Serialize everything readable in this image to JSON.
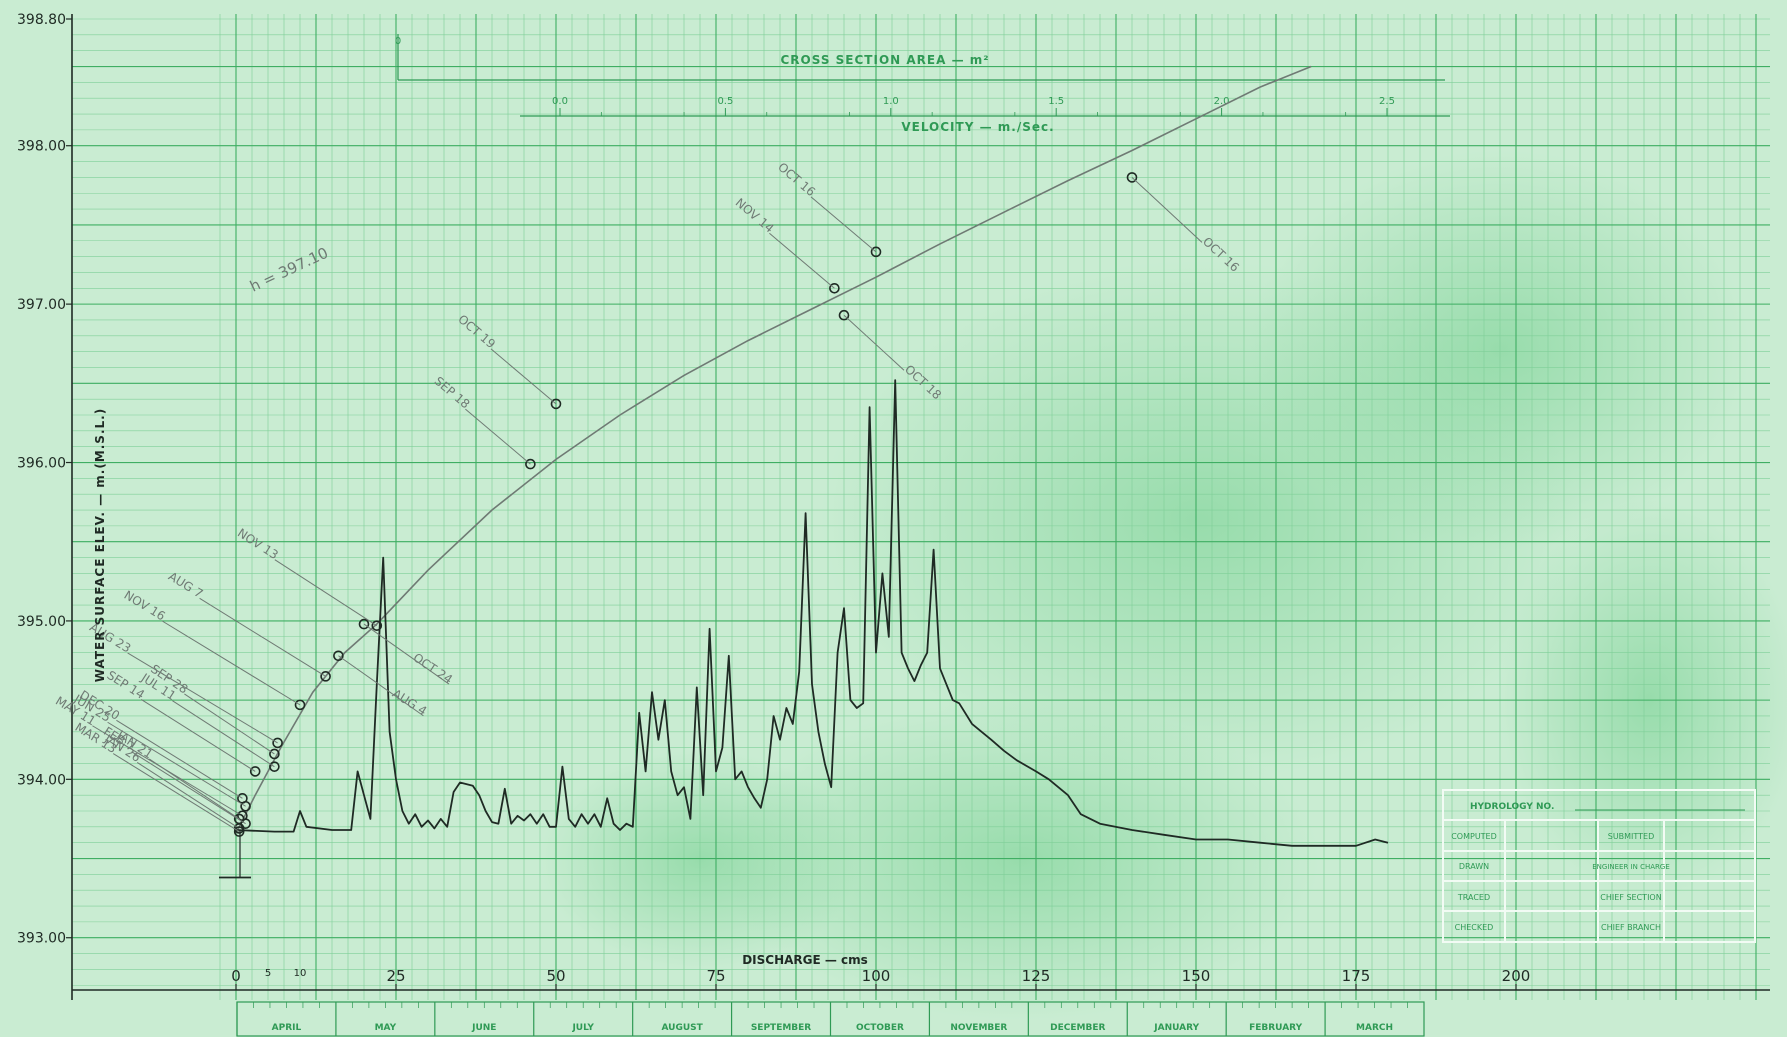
{
  "colors": {
    "paper": "#c9ecd2",
    "paper_dark": "#8fd6a6",
    "grid_minor": "#7fcf98",
    "grid_major": "#3fae63",
    "ink_green": "#2f9a55",
    "ink_dark": "#1f2a24",
    "pencil": "#6f7a74"
  },
  "chart_data": {
    "type": "line",
    "title": "",
    "xlabel": "DISCHARGE — cms",
    "ylabel": "WATER SURFACE ELEV. — m.(M.S.L.)",
    "xlim": [
      -3,
      200
    ],
    "ylim": [
      393.0,
      398.8
    ],
    "x_ticks": [
      {
        "value": 0,
        "label": "0"
      },
      {
        "value": 25,
        "label": "25"
      },
      {
        "value": 50,
        "label": "50"
      },
      {
        "value": 75,
        "label": "75"
      },
      {
        "value": 100,
        "label": "100"
      },
      {
        "value": 125,
        "label": "125"
      },
      {
        "value": 150,
        "label": "150"
      },
      {
        "value": 175,
        "label": "175"
      },
      {
        "value": 200,
        "label": "200"
      }
    ],
    "x_minor_labels": [
      {
        "value": 5,
        "label": "5"
      },
      {
        "value": 10,
        "label": "10"
      }
    ],
    "y_ticks": [
      {
        "value": 393.0,
        "label": "393.00"
      },
      {
        "value": 394.0,
        "label": "394.00"
      },
      {
        "value": 395.0,
        "label": "395.00"
      },
      {
        "value": 396.0,
        "label": "396.00"
      },
      {
        "value": 397.0,
        "label": "397.00"
      },
      {
        "value": 398.0,
        "label": "398.00"
      },
      {
        "value": 398.8,
        "label": "398.80"
      }
    ],
    "grid": true,
    "months": [
      "APRIL",
      "MAY",
      "JUNE",
      "JULY",
      "AUGUST",
      "SEPTEMBER",
      "OCTOBER",
      "NOVEMBER",
      "DECEMBER",
      "JANUARY",
      "FEBRUARY",
      "MARCH"
    ],
    "top_scales": {
      "area_label": "CROSS SECTION AREA — m²",
      "velocity_label": "VELOCITY — m./Sec.",
      "velocity_ticks": [
        "0.0",
        "0.5",
        "1.0",
        "1.5",
        "2.0",
        "2.5"
      ],
      "area_tick": "0"
    },
    "annotation": "h = 397.10",
    "series": [
      {
        "kind": "rating_curve",
        "points": [
          [
            0,
            393.66
          ],
          [
            3,
            393.9
          ],
          [
            7,
            394.2
          ],
          [
            12,
            394.55
          ],
          [
            17,
            394.8
          ],
          [
            22,
            394.98
          ],
          [
            30,
            395.32
          ],
          [
            40,
            395.7
          ],
          [
            50,
            396.02
          ],
          [
            60,
            396.3
          ],
          [
            70,
            396.55
          ],
          [
            80,
            396.77
          ],
          [
            90,
            396.97
          ],
          [
            100,
            397.17
          ],
          [
            110,
            397.38
          ],
          [
            120,
            397.58
          ],
          [
            130,
            397.78
          ],
          [
            140,
            397.97
          ],
          [
            150,
            398.17
          ],
          [
            160,
            398.37
          ],
          [
            168,
            398.5
          ]
        ]
      },
      {
        "kind": "hydrograph",
        "points": [
          [
            0,
            393.68
          ],
          [
            6,
            393.67
          ],
          [
            9,
            393.67
          ],
          [
            10,
            393.8
          ],
          [
            11,
            393.7
          ],
          [
            15,
            393.68
          ],
          [
            18,
            393.68
          ],
          [
            19,
            394.05
          ],
          [
            20,
            393.9
          ],
          [
            21,
            393.75
          ],
          [
            22,
            394.6
          ],
          [
            23,
            395.4
          ],
          [
            24,
            394.3
          ],
          [
            25,
            394.0
          ],
          [
            26,
            393.8
          ],
          [
            27,
            393.72
          ],
          [
            28,
            393.78
          ],
          [
            29,
            393.7
          ],
          [
            30,
            393.74
          ],
          [
            31,
            393.69
          ],
          [
            32,
            393.75
          ],
          [
            33,
            393.7
          ],
          [
            34,
            393.92
          ],
          [
            35,
            393.98
          ],
          [
            36,
            393.97
          ],
          [
            37,
            393.96
          ],
          [
            38,
            393.9
          ],
          [
            39,
            393.8
          ],
          [
            40,
            393.73
          ],
          [
            41,
            393.72
          ],
          [
            42,
            393.94
          ],
          [
            43,
            393.72
          ],
          [
            44,
            393.77
          ],
          [
            45,
            393.74
          ],
          [
            46,
            393.78
          ],
          [
            47,
            393.72
          ],
          [
            48,
            393.78
          ],
          [
            49,
            393.7
          ],
          [
            50,
            393.7
          ],
          [
            51,
            394.08
          ],
          [
            52,
            393.75
          ],
          [
            53,
            393.7
          ],
          [
            54,
            393.78
          ],
          [
            55,
            393.72
          ],
          [
            56,
            393.78
          ],
          [
            57,
            393.7
          ],
          [
            58,
            393.88
          ],
          [
            59,
            393.72
          ],
          [
            60,
            393.68
          ],
          [
            61,
            393.72
          ],
          [
            62,
            393.7
          ],
          [
            63,
            394.42
          ],
          [
            64,
            394.05
          ],
          [
            65,
            394.55
          ],
          [
            66,
            394.25
          ],
          [
            67,
            394.5
          ],
          [
            68,
            394.05
          ],
          [
            69,
            393.9
          ],
          [
            70,
            393.95
          ],
          [
            71,
            393.75
          ],
          [
            72,
            394.58
          ],
          [
            73,
            393.9
          ],
          [
            74,
            394.95
          ],
          [
            75,
            394.05
          ],
          [
            76,
            394.2
          ],
          [
            77,
            394.78
          ],
          [
            78,
            394.0
          ],
          [
            79,
            394.05
          ],
          [
            80,
            393.95
          ],
          [
            81,
            393.88
          ],
          [
            82,
            393.82
          ],
          [
            83,
            394.0
          ],
          [
            84,
            394.4
          ],
          [
            85,
            394.25
          ],
          [
            86,
            394.45
          ],
          [
            87,
            394.35
          ],
          [
            88,
            394.68
          ],
          [
            89,
            395.68
          ],
          [
            90,
            394.6
          ],
          [
            91,
            394.3
          ],
          [
            92,
            394.1
          ],
          [
            93,
            393.95
          ],
          [
            94,
            394.8
          ],
          [
            95,
            395.08
          ],
          [
            96,
            394.5
          ],
          [
            97,
            394.45
          ],
          [
            98,
            394.48
          ],
          [
            99,
            396.35
          ],
          [
            100,
            394.8
          ],
          [
            101,
            395.3
          ],
          [
            102,
            394.9
          ],
          [
            103,
            396.52
          ],
          [
            104,
            394.8
          ],
          [
            105,
            394.7
          ],
          [
            106,
            394.62
          ],
          [
            107,
            394.72
          ],
          [
            108,
            394.8
          ],
          [
            109,
            395.45
          ],
          [
            110,
            394.7
          ],
          [
            111,
            394.6
          ],
          [
            112,
            394.5
          ],
          [
            113,
            394.48
          ],
          [
            115,
            394.35
          ],
          [
            118,
            394.25
          ],
          [
            120,
            394.18
          ],
          [
            122,
            394.12
          ],
          [
            125,
            394.05
          ],
          [
            127,
            394.0
          ],
          [
            130,
            393.9
          ],
          [
            132,
            393.78
          ],
          [
            135,
            393.72
          ],
          [
            140,
            393.68
          ],
          [
            145,
            393.65
          ],
          [
            150,
            393.62
          ],
          [
            155,
            393.62
          ],
          [
            160,
            393.6
          ],
          [
            165,
            393.58
          ],
          [
            170,
            393.58
          ],
          [
            175,
            393.58
          ],
          [
            178,
            393.62
          ],
          [
            180,
            393.6
          ]
        ]
      }
    ],
    "measurements": [
      {
        "label": "OCT 16",
        "x": 140,
        "y": 397.8
      },
      {
        "label": "OCT 16",
        "x": 100,
        "y": 397.33
      },
      {
        "label": "NOV 14",
        "x": 93.5,
        "y": 397.1
      },
      {
        "label": "OCT 18",
        "x": 95,
        "y": 396.93
      },
      {
        "label": "OCT 19",
        "x": 50,
        "y": 396.37
      },
      {
        "label": "SEP 18",
        "x": 46,
        "y": 395.99
      },
      {
        "label": "OCT 24",
        "x": 20,
        "y": 394.98
      },
      {
        "label": "NOV 13",
        "x": 22,
        "y": 394.97
      },
      {
        "label": "AUG 4",
        "x": 16,
        "y": 394.78
      },
      {
        "label": "AUG 7",
        "x": 14,
        "y": 394.65
      },
      {
        "label": "NOV 16",
        "x": 10,
        "y": 394.47
      },
      {
        "label": "AUG 23",
        "x": 6.5,
        "y": 394.23
      },
      {
        "label": "SEP 28",
        "x": 6,
        "y": 394.16
      },
      {
        "label": "JUL 11",
        "x": 6,
        "y": 394.08
      },
      {
        "label": "SEP 14",
        "x": 3,
        "y": 394.05
      },
      {
        "label": "DEC 20",
        "x": 1,
        "y": 393.88
      },
      {
        "label": "JUN 25",
        "x": 1.5,
        "y": 393.83
      },
      {
        "label": "MAY 11",
        "x": 1,
        "y": 393.77
      },
      {
        "label": "JAN 21",
        "x": 0.5,
        "y": 393.75
      },
      {
        "label": "JAN 26",
        "x": 0.5,
        "y": 393.69
      },
      {
        "label": "FEB 7",
        "x": 1.5,
        "y": 393.72
      },
      {
        "label": "MAR 13",
        "x": 0.5,
        "y": 393.67
      }
    ],
    "zero_mark": {
      "x": 0,
      "y": 393.38
    }
  },
  "title_block": {
    "hydrology": "HYDROLOGY NO.",
    "rows": [
      {
        "left": "COMPUTED",
        "right": "SUBMITTED"
      },
      {
        "left": "DRAWN",
        "right": "ENGINEER IN CHARGE"
      },
      {
        "left": "TRACED",
        "right": "CHIEF SECTION"
      },
      {
        "left": "CHECKED",
        "right": "CHIEF BRANCH"
      }
    ]
  }
}
